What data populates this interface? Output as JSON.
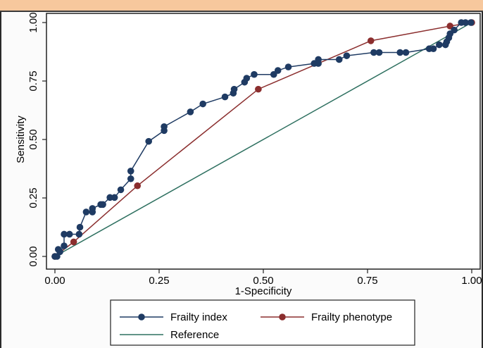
{
  "chart_data": {
    "type": "line",
    "title": "",
    "xlabel": "1-Specificity",
    "ylabel": "Sensitivity",
    "xlim": [
      0,
      1
    ],
    "ylim": [
      0,
      1
    ],
    "x_ticks": [
      "0.00",
      "0.25",
      "0.50",
      "0.75",
      "1.00"
    ],
    "y_ticks": [
      "0.00",
      "0.25",
      "0.50",
      "0.75",
      "1.00"
    ],
    "grid": false,
    "legend_position": "bottom",
    "series": [
      {
        "name": "Frailty index",
        "color": "#1f3b63",
        "marker": "circle",
        "points": [
          [
            0.0,
            0.0
          ],
          [
            0.005,
            0.0
          ],
          [
            0.008,
            0.03
          ],
          [
            0.012,
            0.02
          ],
          [
            0.022,
            0.045
          ],
          [
            0.022,
            0.095
          ],
          [
            0.035,
            0.095
          ],
          [
            0.058,
            0.095
          ],
          [
            0.06,
            0.125
          ],
          [
            0.075,
            0.19
          ],
          [
            0.09,
            0.19
          ],
          [
            0.09,
            0.205
          ],
          [
            0.11,
            0.222
          ],
          [
            0.115,
            0.222
          ],
          [
            0.132,
            0.252
          ],
          [
            0.143,
            0.252
          ],
          [
            0.158,
            0.285
          ],
          [
            0.182,
            0.332
          ],
          [
            0.182,
            0.365
          ],
          [
            0.225,
            0.492
          ],
          [
            0.262,
            0.538
          ],
          [
            0.262,
            0.555
          ],
          [
            0.325,
            0.618
          ],
          [
            0.355,
            0.652
          ],
          [
            0.408,
            0.682
          ],
          [
            0.428,
            0.698
          ],
          [
            0.43,
            0.715
          ],
          [
            0.455,
            0.745
          ],
          [
            0.46,
            0.762
          ],
          [
            0.478,
            0.778
          ],
          [
            0.525,
            0.778
          ],
          [
            0.535,
            0.795
          ],
          [
            0.56,
            0.81
          ],
          [
            0.622,
            0.825
          ],
          [
            0.632,
            0.825
          ],
          [
            0.632,
            0.842
          ],
          [
            0.682,
            0.842
          ],
          [
            0.7,
            0.858
          ],
          [
            0.765,
            0.872
          ],
          [
            0.778,
            0.872
          ],
          [
            0.828,
            0.872
          ],
          [
            0.842,
            0.872
          ],
          [
            0.898,
            0.888
          ],
          [
            0.908,
            0.888
          ],
          [
            0.922,
            0.905
          ],
          [
            0.937,
            0.905
          ],
          [
            0.94,
            0.918
          ],
          [
            0.945,
            0.935
          ],
          [
            0.948,
            0.952
          ],
          [
            0.958,
            0.968
          ],
          [
            0.975,
            1.0
          ],
          [
            0.985,
            1.0
          ],
          [
            0.998,
            1.0
          ]
        ]
      },
      {
        "name": "Frailty phenotype",
        "color": "#8b2e2e",
        "marker": "circle",
        "points": [
          [
            0.0,
            0.0
          ],
          [
            0.045,
            0.062
          ],
          [
            0.198,
            0.302
          ],
          [
            0.488,
            0.715
          ],
          [
            0.758,
            0.922
          ],
          [
            0.948,
            0.985
          ],
          [
            1.0,
            1.0
          ]
        ]
      },
      {
        "name": "Reference",
        "color": "#2e7060",
        "marker": "none",
        "points": [
          [
            0,
            0
          ],
          [
            1,
            1
          ]
        ]
      }
    ]
  }
}
